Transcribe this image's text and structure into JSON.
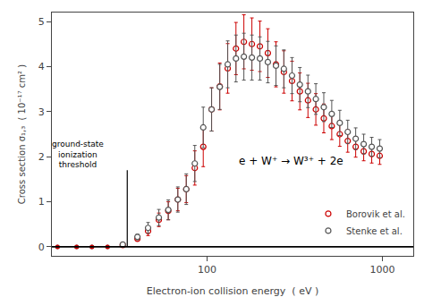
{
  "chart_data": {
    "type": "scatter",
    "x_label": "Electron-ion collision energy  ( eV )",
    "y_label": "Cross section σ₁,₃  ( 10⁻¹⁷ cm² )",
    "log": "x",
    "xlim": [
      13,
      1500
    ],
    "xticks": [
      100,
      1000
    ],
    "ylim": [
      -0.2,
      5.2
    ],
    "yticks": [
      0,
      1,
      2,
      3,
      4,
      5
    ],
    "grid": false,
    "legend": "lower right",
    "baseline": 0,
    "threshold_line": {
      "x": 35,
      "y": [
        0,
        1.7
      ]
    },
    "annotations": [
      {
        "text": "ground-state\nionization\nthreshold",
        "x": 18.2,
        "y": 2.05
      },
      {
        "text": "e + W⁺ → W³⁺ + 2e",
        "x": 300,
        "y": 1.9
      }
    ],
    "series": [
      {
        "name": "Stenke et al.",
        "color": "#555555",
        "x": [
          14,
          18,
          22,
          27,
          33,
          40,
          46,
          53,
          60,
          68,
          76,
          85,
          95,
          106,
          118,
          131,
          146,
          162,
          180,
          200,
          222,
          247,
          274,
          305,
          338,
          376,
          417,
          463,
          514,
          571,
          634,
          704,
          782,
          869,
          965
        ],
        "values": [
          0.0,
          0.0,
          0.0,
          0.0,
          0.05,
          0.22,
          0.42,
          0.65,
          0.82,
          1.05,
          1.28,
          1.85,
          2.65,
          3.05,
          3.55,
          4.05,
          4.18,
          4.22,
          4.2,
          4.18,
          4.1,
          4.02,
          3.95,
          3.8,
          3.6,
          3.45,
          3.28,
          3.1,
          2.95,
          2.75,
          2.55,
          2.4,
          2.28,
          2.22,
          2.18
        ],
        "errors": [
          0.0,
          0.0,
          0.0,
          0.0,
          0.02,
          0.06,
          0.12,
          0.18,
          0.22,
          0.28,
          0.34,
          0.4,
          0.45,
          0.48,
          0.5,
          0.52,
          0.52,
          0.52,
          0.5,
          0.48,
          0.46,
          0.44,
          0.42,
          0.4,
          0.38,
          0.36,
          0.34,
          0.32,
          0.3,
          0.28,
          0.26,
          0.24,
          0.22,
          0.21,
          0.2
        ]
      },
      {
        "name": "Borovik et al.",
        "color": "#cc0000",
        "x": [
          14,
          18,
          22,
          27,
          33,
          40,
          46,
          53,
          60,
          68,
          76,
          85,
          95,
          106,
          118,
          131,
          146,
          162,
          180,
          200,
          222,
          247,
          274,
          305,
          338,
          376,
          417,
          463,
          514,
          571,
          634,
          704,
          782,
          869,
          965
        ],
        "values": [
          0.0,
          0.0,
          0.0,
          0.0,
          0.04,
          0.18,
          0.35,
          0.6,
          0.8,
          1.05,
          1.28,
          1.75,
          2.22,
          3.05,
          3.56,
          3.96,
          4.4,
          4.55,
          4.5,
          4.45,
          4.3,
          4.05,
          3.88,
          3.68,
          3.45,
          3.25,
          3.05,
          2.85,
          2.68,
          2.5,
          2.35,
          2.22,
          2.12,
          2.06,
          2.02
        ],
        "errors": [
          0.0,
          0.0,
          0.0,
          0.0,
          0.02,
          0.05,
          0.1,
          0.15,
          0.2,
          0.25,
          0.3,
          0.38,
          0.44,
          0.48,
          0.52,
          0.55,
          0.58,
          0.6,
          0.58,
          0.56,
          0.54,
          0.5,
          0.47,
          0.44,
          0.41,
          0.38,
          0.35,
          0.32,
          0.3,
          0.27,
          0.25,
          0.23,
          0.21,
          0.2,
          0.19
        ]
      }
    ]
  }
}
